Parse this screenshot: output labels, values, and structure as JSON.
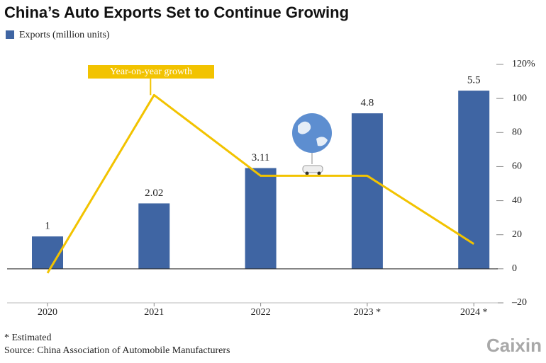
{
  "chart_data": {
    "type": "bar",
    "title": "China’s Auto Exports Set to Continue Growing",
    "categories": [
      "2020",
      "2021",
      "2022",
      "2023 *",
      "2024 *"
    ],
    "series": [
      {
        "name": "Exports (million units)",
        "color": "#3f65a3",
        "values": [
          1,
          2.02,
          3.11,
          4.8,
          5.5
        ]
      },
      {
        "name": "Year-on-year growth",
        "color": "#f2c300",
        "axis": "y2",
        "type": "line",
        "values": [
          -2.5,
          102,
          54.6,
          54.6,
          14.6
        ]
      }
    ],
    "ylim": [
      -1.05,
      6.31
    ],
    "y2lim": [
      -20,
      120
    ],
    "y2ticks": [
      {
        "value": -20,
        "label": "–20"
      },
      0,
      20,
      40,
      60,
      80,
      100,
      {
        "value": 120,
        "label": "120%"
      }
    ],
    "footnote": "* Estimated",
    "source": "Source: China Association of Automobile Manufacturers",
    "logo": "Caixin"
  }
}
